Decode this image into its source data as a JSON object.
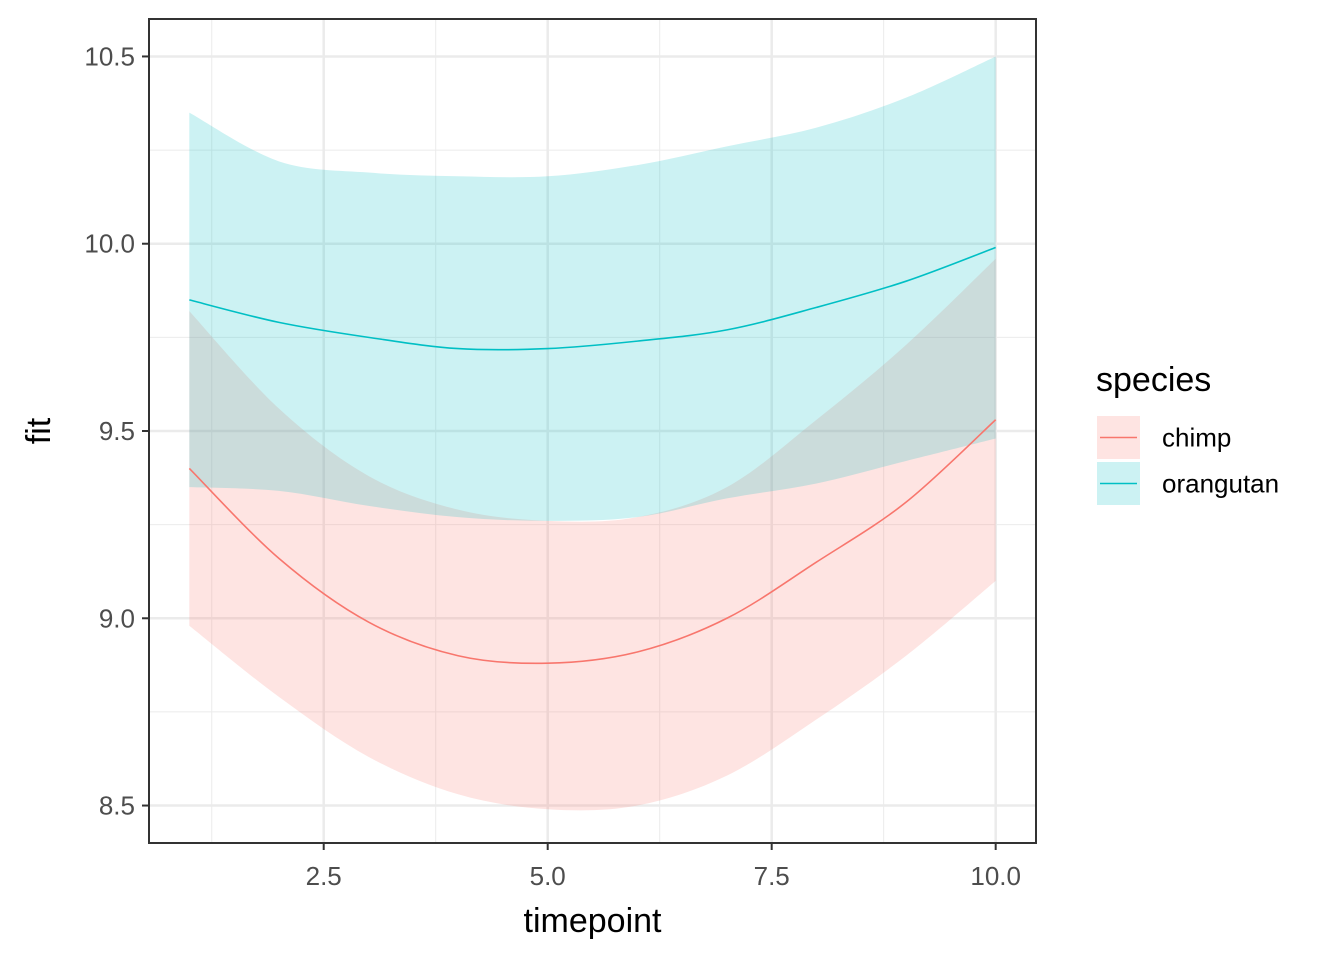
{
  "chart_data": {
    "type": "line",
    "xlabel": "timepoint",
    "ylabel": "fit",
    "xlim": [
      0.55,
      10.45
    ],
    "ylim": [
      8.4,
      10.6
    ],
    "x_ticks": [
      2.5,
      5.0,
      7.5,
      10.0
    ],
    "x_tick_labels": [
      "2.5",
      "5.0",
      "7.5",
      "10.0"
    ],
    "y_ticks": [
      8.5,
      9.0,
      9.5,
      10.0,
      10.5
    ],
    "y_tick_labels": [
      "8.5",
      "9.0",
      "9.5",
      "10.0",
      "10.5"
    ],
    "x_minor": [
      1.25,
      3.75,
      6.25,
      8.75
    ],
    "y_minor": [
      8.75,
      9.25,
      9.75,
      10.25
    ],
    "grid": true,
    "legend": {
      "title": "species",
      "position": "right"
    },
    "series": [
      {
        "name": "chimp",
        "line_color": "#F8766D",
        "fill_color": "#F8766D",
        "x": [
          1,
          2,
          3,
          4,
          5,
          6,
          7,
          8,
          9,
          10
        ],
        "fit": [
          9.4,
          9.16,
          8.99,
          8.9,
          8.88,
          8.91,
          9.0,
          9.15,
          9.31,
          9.53
        ],
        "lower": [
          8.98,
          8.79,
          8.63,
          8.53,
          8.49,
          8.5,
          8.58,
          8.73,
          8.9,
          9.1
        ],
        "upper": [
          9.82,
          9.56,
          9.38,
          9.29,
          9.26,
          9.27,
          9.35,
          9.53,
          9.73,
          9.96
        ]
      },
      {
        "name": "orangutan",
        "line_color": "#00BFC4",
        "fill_color": "#00BFC4",
        "x": [
          1,
          2,
          3,
          4,
          5,
          6,
          7,
          8,
          9,
          10
        ],
        "fit": [
          9.85,
          9.79,
          9.75,
          9.72,
          9.72,
          9.74,
          9.77,
          9.83,
          9.9,
          9.99
        ],
        "lower": [
          9.35,
          9.34,
          9.3,
          9.27,
          9.26,
          9.27,
          9.32,
          9.36,
          9.42,
          9.48
        ],
        "upper": [
          10.35,
          10.22,
          10.19,
          10.18,
          10.18,
          10.21,
          10.26,
          10.31,
          10.39,
          10.5
        ]
      }
    ]
  }
}
